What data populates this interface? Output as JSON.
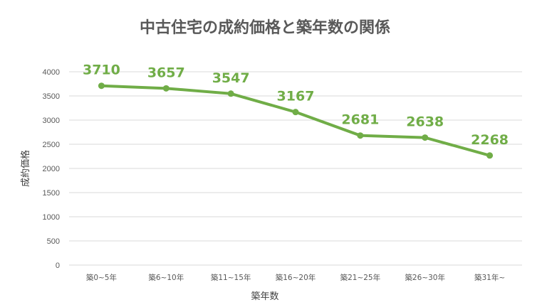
{
  "chart_data": {
    "type": "line",
    "title": "中古住宅の成約価格と築年数の関係",
    "xlabel": "築年数",
    "ylabel": "成約価格",
    "categories": [
      "築0~5年",
      "築6~10年",
      "築11~15年",
      "築16~20年",
      "築21~25年",
      "築26~30年",
      "築31年~"
    ],
    "values": [
      3710,
      3657,
      3547,
      3167,
      2681,
      2638,
      2268
    ],
    "ylim": [
      0,
      4000
    ],
    "yticks": [
      0,
      500,
      1000,
      1500,
      2000,
      2500,
      3000,
      3500,
      4000
    ],
    "grid": true,
    "data_labels": true,
    "legend": "none",
    "colors": {
      "series": "#70AD47",
      "grid": "#D9D9D9",
      "text": "#595959"
    }
  }
}
